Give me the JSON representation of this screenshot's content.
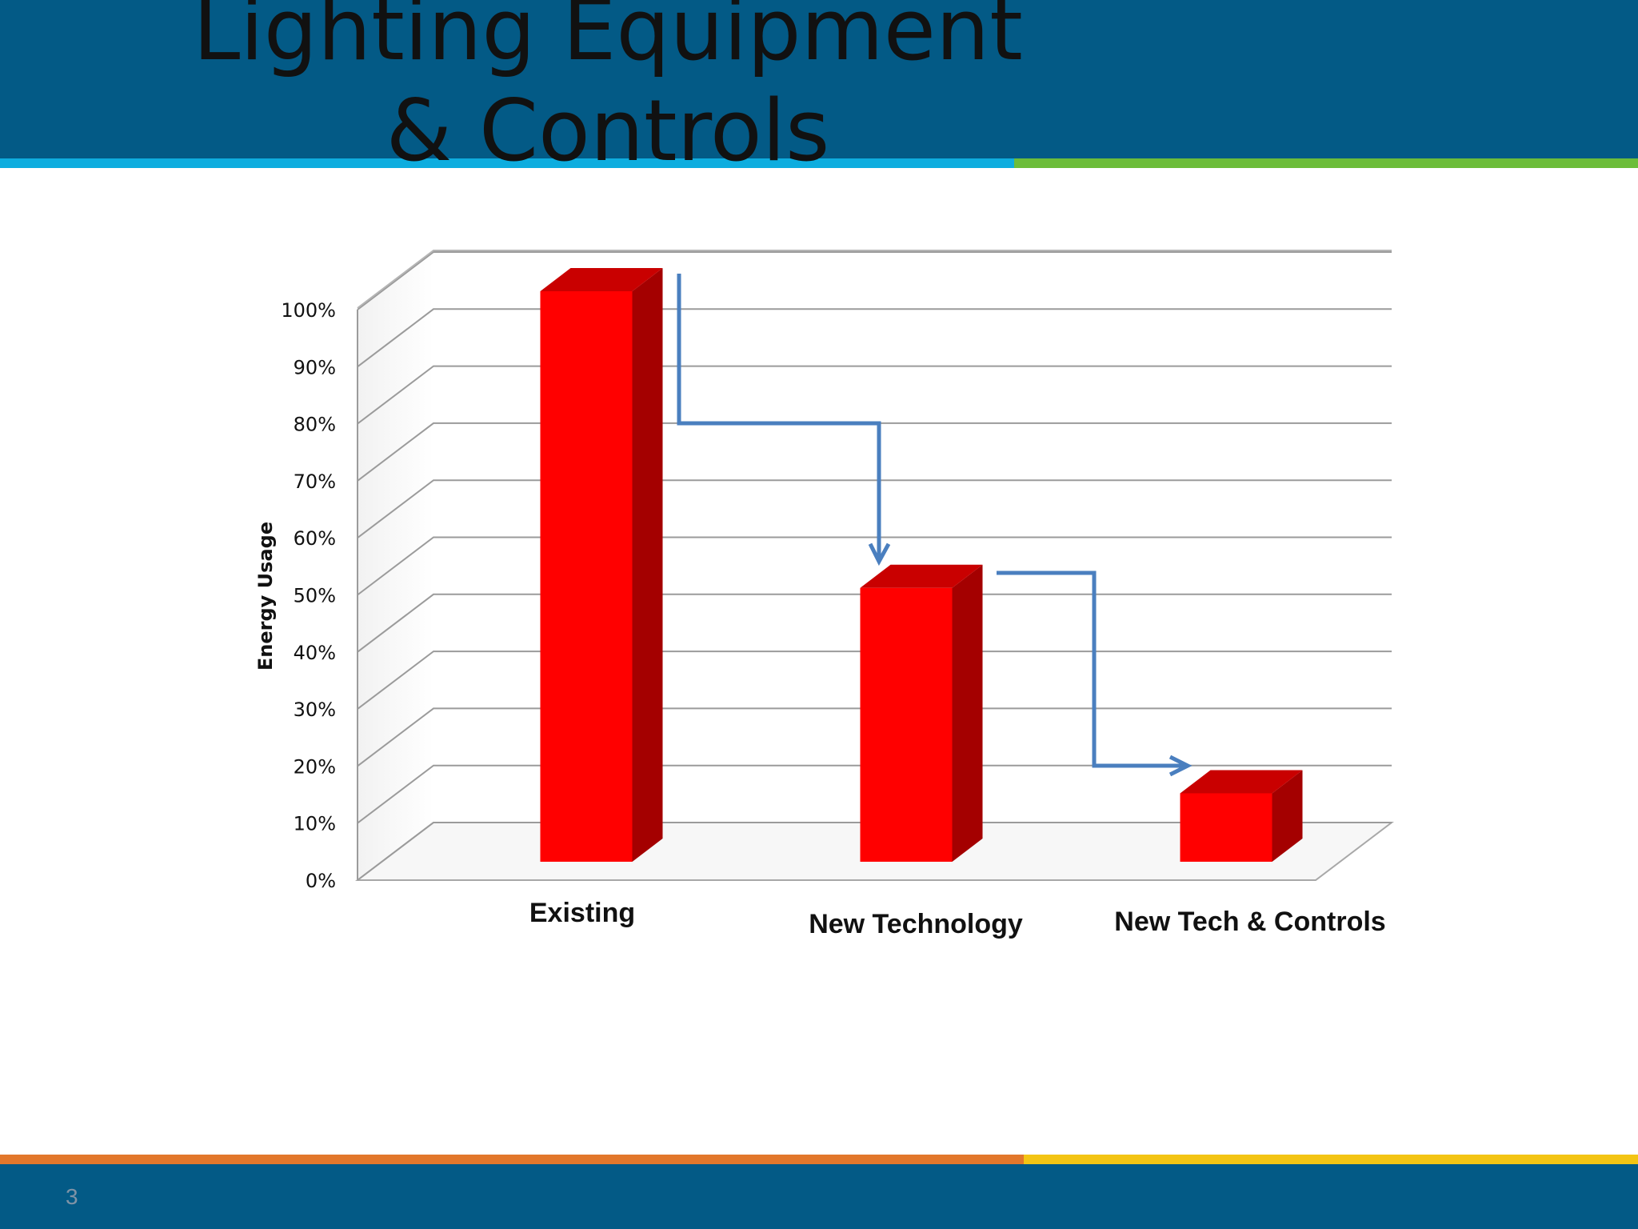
{
  "slide": {
    "title": "Lighting Equipment & Controls",
    "page_number": "3"
  },
  "colors": {
    "header_bg": "#035a86",
    "stripe_blue": "#0eaddf",
    "stripe_green": "#6cbd3a",
    "stripe_orange": "#e2772b",
    "stripe_yellow": "#f3c414",
    "bar_front": "#ff0000",
    "bar_side": "#a40000",
    "bar_top": "#c90000",
    "arrow": "#4a7fbf"
  },
  "chart_data": {
    "type": "bar",
    "style": "3d-column",
    "title": "",
    "xlabel": "",
    "ylabel": "Energy Usage",
    "categories": [
      "Existing",
      "New Technology",
      "New Tech & Controls"
    ],
    "values": [
      100,
      48,
      12
    ],
    "value_unit": "%",
    "ylim": [
      0,
      100
    ],
    "yticks": [
      "0%",
      "10%",
      "20%",
      "30%",
      "40%",
      "50%",
      "60%",
      "70%",
      "80%",
      "90%",
      "100%"
    ],
    "grid": true,
    "legend": "none",
    "annotations": [
      "step-down arrow from Existing to New Technology",
      "step-down arrow from New Technology to New Tech & Controls"
    ]
  }
}
